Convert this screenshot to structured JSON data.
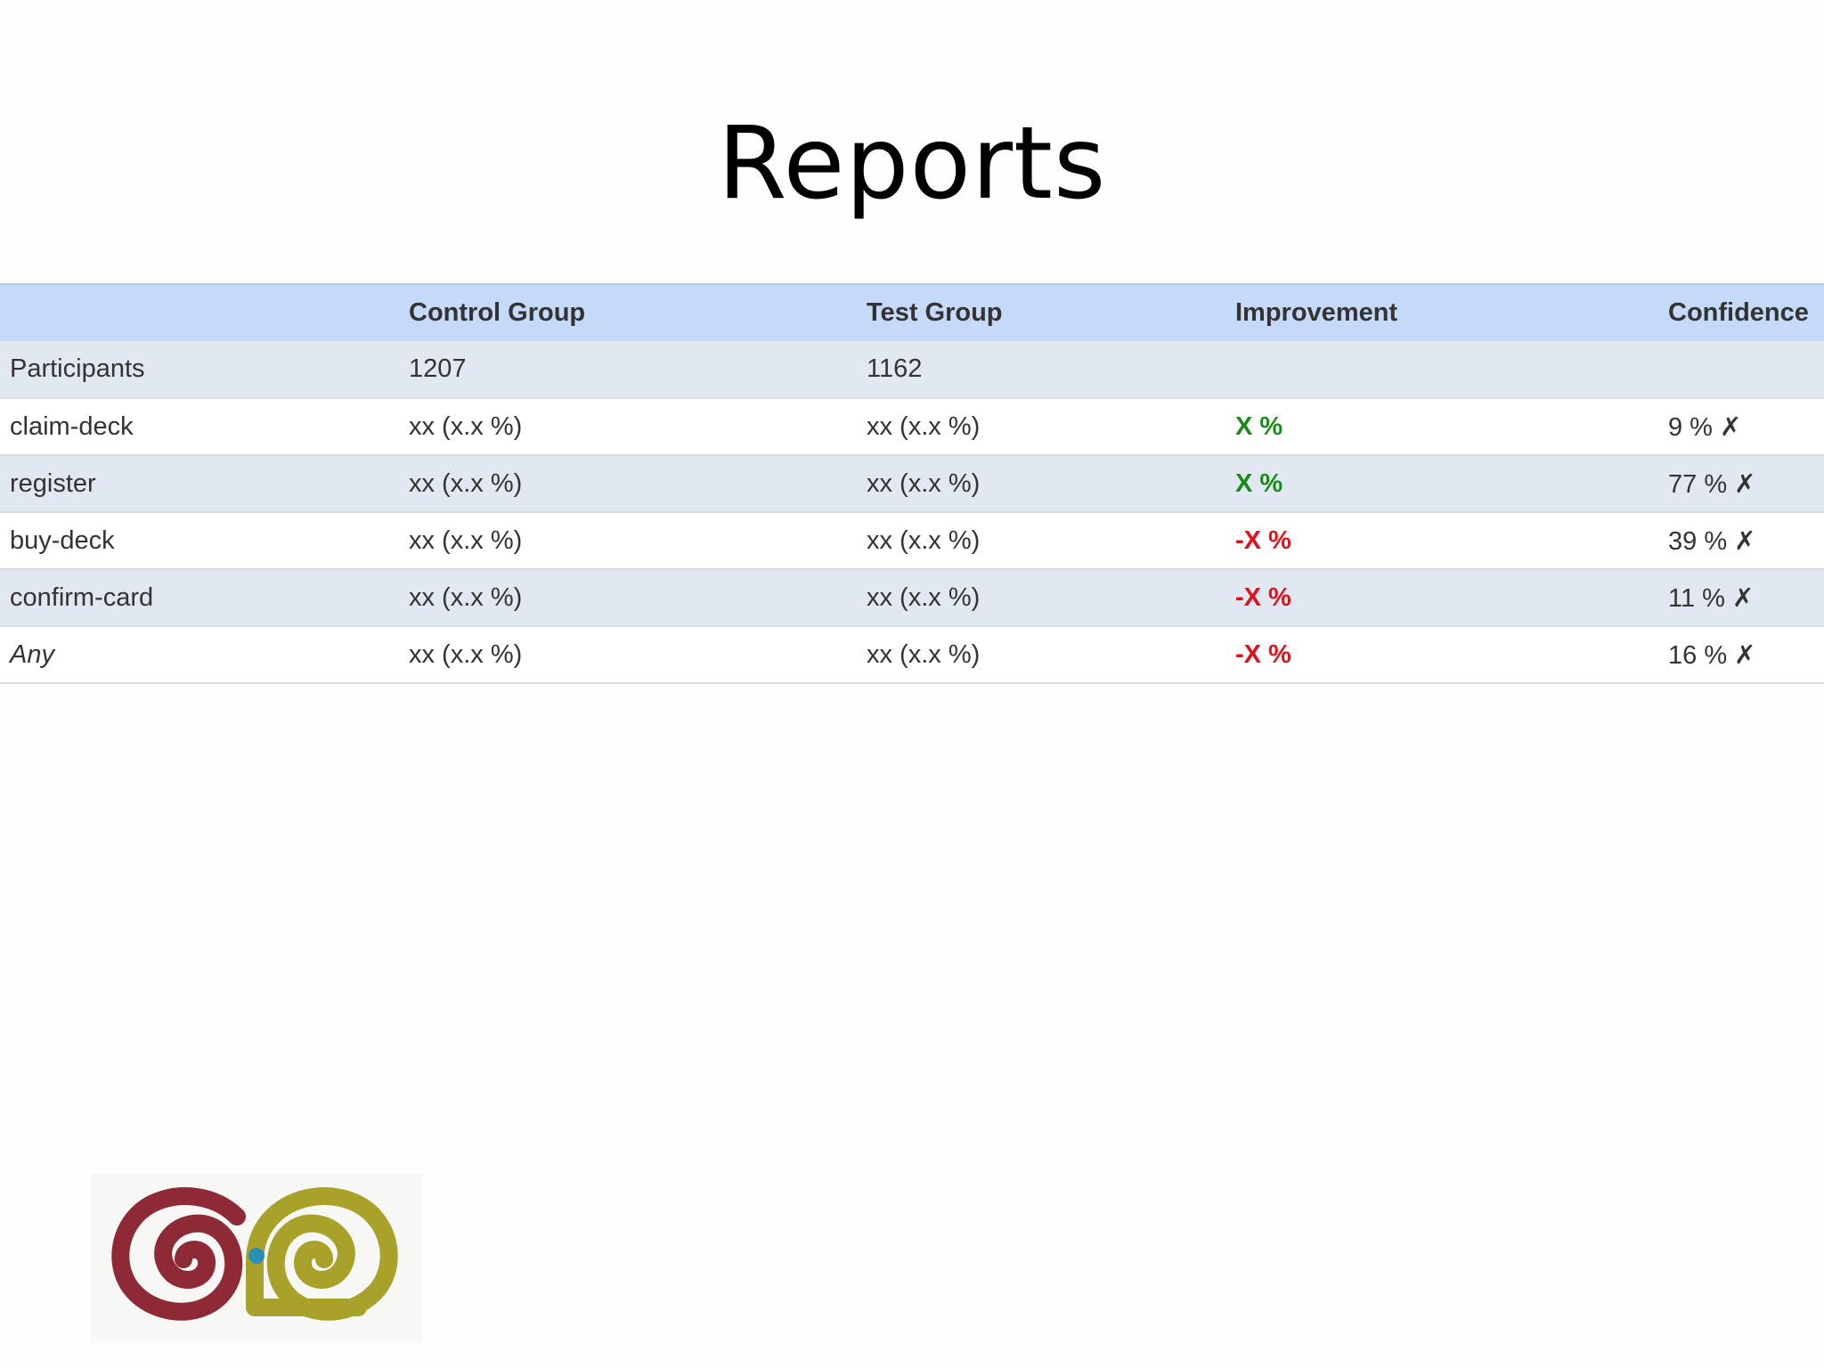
{
  "slide": {
    "title": "Reports"
  },
  "table": {
    "headers": [
      "",
      "Control Group",
      "Test Group",
      "Improvement",
      "Confidence"
    ],
    "rows": [
      {
        "metric": "Participants",
        "control": "1207",
        "test": "1162",
        "improvement": "",
        "confidence": ""
      },
      {
        "metric": "claim-deck",
        "control": "xx (x.x %)",
        "test": "xx (x.x %)",
        "improvement": "X %",
        "confidence": "9 % ✗"
      },
      {
        "metric": "register",
        "control": "xx (x.x %)",
        "test": "xx (x.x %)",
        "improvement": "X %",
        "confidence": "77 % ✗"
      },
      {
        "metric": "buy-deck",
        "control": "xx (x.x %)",
        "test": "xx (x.x %)",
        "improvement": "-X %",
        "confidence": "39 % ✗"
      },
      {
        "metric": "confirm-card",
        "control": "xx (x.x %)",
        "test": "xx (x.x %)",
        "improvement": "-X %",
        "confidence": "11 % ✗"
      },
      {
        "metric": "Any",
        "control": "xx (x.x %)",
        "test": "xx (x.x %)",
        "improvement": "-X %",
        "confidence": "16 % ✗"
      }
    ]
  },
  "colors": {
    "header_bg": "#c5d9f8",
    "row_alt_bg": "#e1e8f2",
    "positive": "#1a8a1a",
    "negative": "#e0111b",
    "logo_left": "#8e2a35",
    "logo_right": "#a9a22a",
    "logo_dot": "#2a8fb5"
  },
  "logo": {
    "icon": "double-spiral-logo"
  }
}
